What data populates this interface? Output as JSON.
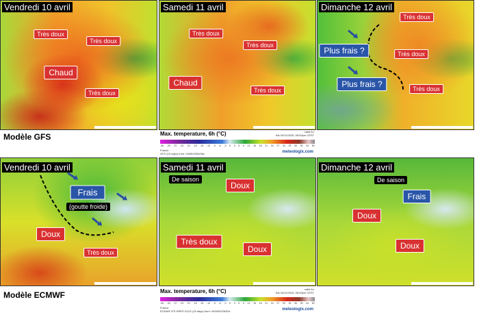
{
  "gfs": {
    "model_label": "Modèle GFS",
    "panels": [
      {
        "day": "Vendredi 10 avril",
        "labels": [
          "Très doux",
          "Très doux",
          "Chaud",
          "Très doux"
        ]
      },
      {
        "day": "Samedi 11 avril",
        "labels": [
          "Très doux",
          "Très doux",
          "Chaud",
          "Très doux"
        ]
      },
      {
        "day": "Dimanche 12 avril",
        "labels": [
          "Très doux",
          "Plus frais ?",
          "Très doux",
          "Plus frais ?",
          "Très doux"
        ]
      }
    ],
    "legend": {
      "title": "Max. temperature, 6h (°C)",
      "valid_label": "valid for",
      "valid": "Sat 04/11/2026, 08:00pm CEST",
      "region": "France",
      "source": "GFS (15 days) from: 04/06/2026/06z",
      "brand": "meteologix.com"
    }
  },
  "ecmwf": {
    "model_label": "Modèle ECMWF",
    "panels": [
      {
        "day": "Vendredi 10 avril",
        "labels": [
          "Frais",
          "(goutte froide)",
          "Doux",
          "Très doux"
        ]
      },
      {
        "day": "Samedi 11 avril",
        "labels": [
          "De saison",
          "Doux",
          "Très doux",
          "Doux"
        ]
      },
      {
        "day": "Dimanche 12 avril",
        "labels": [
          "De saison",
          "Frais",
          "Doux",
          "Doux"
        ]
      }
    ],
    "legend": {
      "title": "Max. temperature, 6h (°C)",
      "valid_label": "valid for",
      "valid": "Sat 04/11/2026, 08:00pm CEST",
      "region": "France",
      "source": "ECMWF IFS HRES 0/122 (15 days) from: 04/06/2026/00z",
      "brand": "meteologix.com"
    }
  },
  "scale_ticks": [
    "-36",
    "-30",
    "-27",
    "-24",
    "-21",
    "-18",
    "-15",
    "-12",
    "-9",
    "-6",
    "-3",
    "0",
    "3",
    "6",
    "9",
    "12",
    "15",
    "18",
    "21",
    "24",
    "27",
    "30",
    "33",
    "36",
    "39",
    "44",
    "50"
  ]
}
